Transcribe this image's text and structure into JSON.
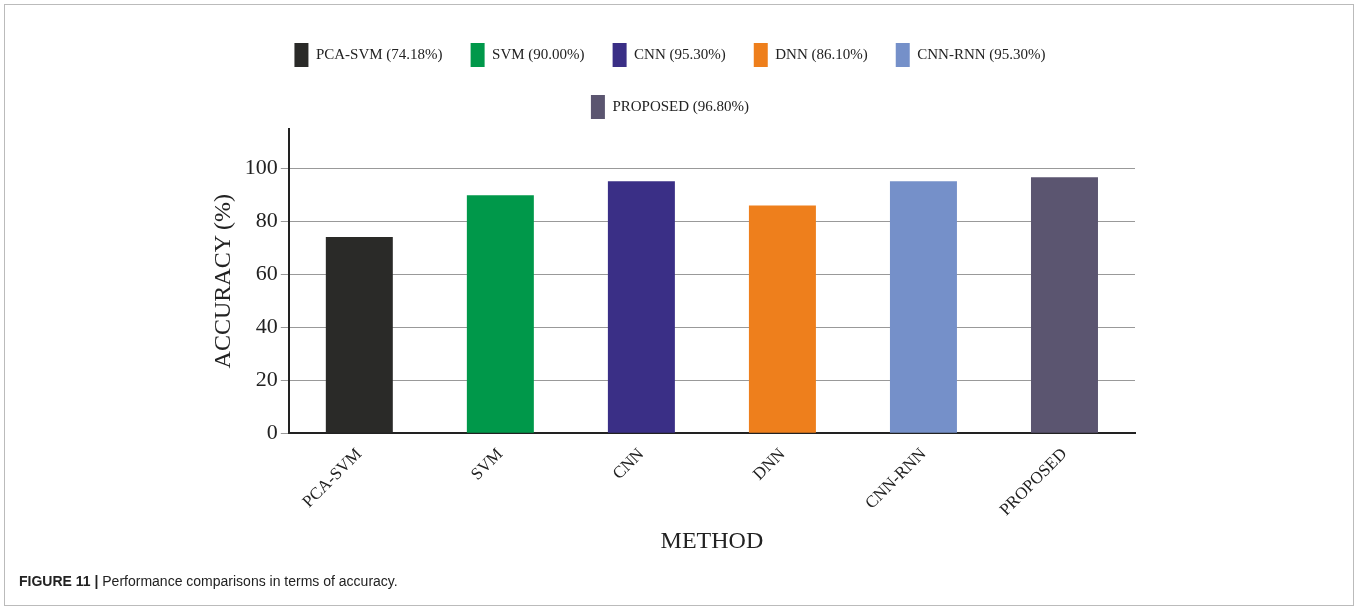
{
  "chart_data": {
    "type": "bar",
    "xlabel": "METHOD",
    "ylabel": "ACCURACY (%)",
    "categories": [
      "PCA-SVM",
      "SVM",
      "CNN",
      "DNN",
      "CNN-RNN",
      "PROPOSED"
    ],
    "series": [
      {
        "name": "PCA-SVM (74.18%)",
        "color": "#2a2a28",
        "values": [
          74.18,
          null,
          null,
          null,
          null,
          null
        ]
      },
      {
        "name": "SVM (90.00%)",
        "color": "#00984a",
        "values": [
          null,
          90.0,
          null,
          null,
          null,
          null
        ]
      },
      {
        "name": "CNN (95.30%)",
        "color": "#3a2f86",
        "values": [
          null,
          null,
          95.3,
          null,
          null,
          null
        ]
      },
      {
        "name": "DNN (86.10%)",
        "color": "#ee7f1c",
        "values": [
          null,
          null,
          null,
          86.1,
          null,
          null
        ]
      },
      {
        "name": "CNN-RNN (95.30%)",
        "color": "#7590c9",
        "values": [
          null,
          null,
          null,
          null,
          95.3,
          null
        ]
      },
      {
        "name": "PROPOSED (96.80%)",
        "color": "#5b5570",
        "values": [
          null,
          null,
          null,
          null,
          null,
          96.8
        ]
      }
    ],
    "ylim": [
      0,
      115
    ],
    "yticks": [
      0,
      20,
      40,
      60,
      80,
      100
    ],
    "grid": "y",
    "legend": "top",
    "annotations": [
      "FIGURE 11 | Performance comparisons in terms of accuracy."
    ]
  }
}
